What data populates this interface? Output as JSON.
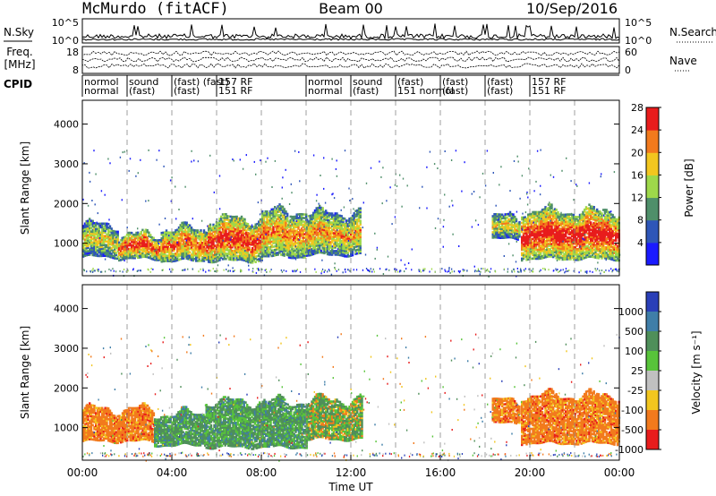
{
  "header": {
    "station": "McMurdo (fitACF)",
    "beam": "Beam 00",
    "date": "10/Sep/2016"
  },
  "top_panels": {
    "nsky": {
      "label": "N.Sky",
      "ticks": [
        "10^5",
        "10^0"
      ],
      "right_label": "N.Search",
      "right_ticks": [
        "10^5",
        "10^0"
      ]
    },
    "freq": {
      "label_line1": "Freq.",
      "label_line2": "[MHz]",
      "ticks": [
        "18",
        "8"
      ],
      "right_label": "Nave",
      "right_ticks": [
        "60",
        "0"
      ]
    },
    "cpid": {
      "label": "CPID",
      "segments": [
        {
          "start": 0.0,
          "end": 2.0,
          "line1": "normol",
          "line2": "normal"
        },
        {
          "start": 2.0,
          "end": 4.0,
          "line1": "sound",
          "line2": "(fast)"
        },
        {
          "start": 4.0,
          "end": 6.0,
          "line1": "(fast) (fast)",
          "line2": "(fast)"
        },
        {
          "start": 6.0,
          "end": 10.0,
          "line1": "157 RF",
          "line2": "151 RF"
        },
        {
          "start": 10.0,
          "end": 12.0,
          "line1": "normol",
          "line2": "normal"
        },
        {
          "start": 12.0,
          "end": 14.0,
          "line1": "sound",
          "line2": "(fast)"
        },
        {
          "start": 14.0,
          "end": 16.0,
          "line1": "(fast)",
          "line2": "151 normol"
        },
        {
          "start": 16.0,
          "end": 18.0,
          "line1": "(fast)",
          "line2": "(fast)"
        },
        {
          "start": 18.0,
          "end": 20.0,
          "line1": "(fast)",
          "line2": "(fast)"
        },
        {
          "start": 20.0,
          "end": 24.0,
          "line1": "157 RF",
          "line2": "151 RF"
        }
      ]
    }
  },
  "chart_data": [
    {
      "type": "heatmap",
      "name": "power",
      "xlabel": "",
      "ylabel": "Slant Range [km]",
      "xlim": [
        0,
        24
      ],
      "ylim": [
        180,
        4600
      ],
      "yticks": [
        1000,
        2000,
        3000,
        4000
      ],
      "colorbar": {
        "label": "Power [dB]",
        "ticks": [
          "4",
          "8",
          "12",
          "16",
          "20",
          "24",
          "28"
        ],
        "colors": [
          "#1a1aff",
          "#2e56b8",
          "#4f8f6a",
          "#9ed84a",
          "#f2c61f",
          "#f27a1d",
          "#e81c1c"
        ]
      },
      "echo_regions": [
        {
          "t0": 0.0,
          "t1": 1.6,
          "r0": 650,
          "r1": 1450,
          "intensity": 0.55
        },
        {
          "t0": 1.6,
          "t1": 3.5,
          "r0": 600,
          "r1": 1200,
          "intensity": 0.8
        },
        {
          "t0": 3.5,
          "t1": 5.6,
          "r0": 550,
          "r1": 1350,
          "intensity": 0.75
        },
        {
          "t0": 5.6,
          "t1": 8.0,
          "r0": 550,
          "r1": 1600,
          "intensity": 0.85
        },
        {
          "t0": 8.0,
          "t1": 10.0,
          "r0": 650,
          "r1": 1800,
          "intensity": 0.7
        },
        {
          "t0": 10.0,
          "t1": 12.4,
          "r0": 700,
          "r1": 1750,
          "intensity": 0.65
        },
        {
          "t0": 18.3,
          "t1": 19.5,
          "r0": 1100,
          "r1": 1650,
          "intensity": 0.55
        },
        {
          "t0": 19.6,
          "t1": 24.0,
          "r0": 600,
          "r1": 1800,
          "intensity": 0.9
        }
      ]
    },
    {
      "type": "heatmap",
      "name": "velocity",
      "xlabel": "Time UT",
      "ylabel": "Slant Range [km]",
      "xlim": [
        0,
        24
      ],
      "ylim": [
        180,
        4600
      ],
      "xticks": [
        "00:00",
        "04:00",
        "08:00",
        "12:00",
        "16:00",
        "20:00",
        "00:00"
      ],
      "yticks": [
        1000,
        2000,
        3000,
        4000
      ],
      "colorbar": {
        "label": "Velocity [m s⁻¹]",
        "ticks": [
          "1000",
          "500",
          "100",
          "25",
          "-25",
          "-100",
          "-500",
          "-1000"
        ],
        "colors": [
          "#2a3fb8",
          "#3f7ea8",
          "#4f8f5a",
          "#58c43a",
          "#c0c0c0",
          "#f2c61f",
          "#f27a1d",
          "#e81c1c"
        ]
      },
      "echo_regions": [
        {
          "t0": 0.0,
          "t1": 3.2,
          "r0": 650,
          "r1": 1450,
          "band": "negative"
        },
        {
          "t0": 3.2,
          "t1": 5.5,
          "r0": 550,
          "r1": 1350,
          "band": "positive"
        },
        {
          "t0": 5.5,
          "t1": 10.0,
          "r0": 500,
          "r1": 1650,
          "band": "positive"
        },
        {
          "t0": 10.0,
          "t1": 12.5,
          "r0": 700,
          "r1": 1700,
          "band": "mixed"
        },
        {
          "t0": 18.3,
          "t1": 19.5,
          "r0": 1100,
          "r1": 1650,
          "band": "negative"
        },
        {
          "t0": 19.6,
          "t1": 24.0,
          "r0": 600,
          "r1": 1800,
          "band": "negative"
        }
      ]
    }
  ]
}
